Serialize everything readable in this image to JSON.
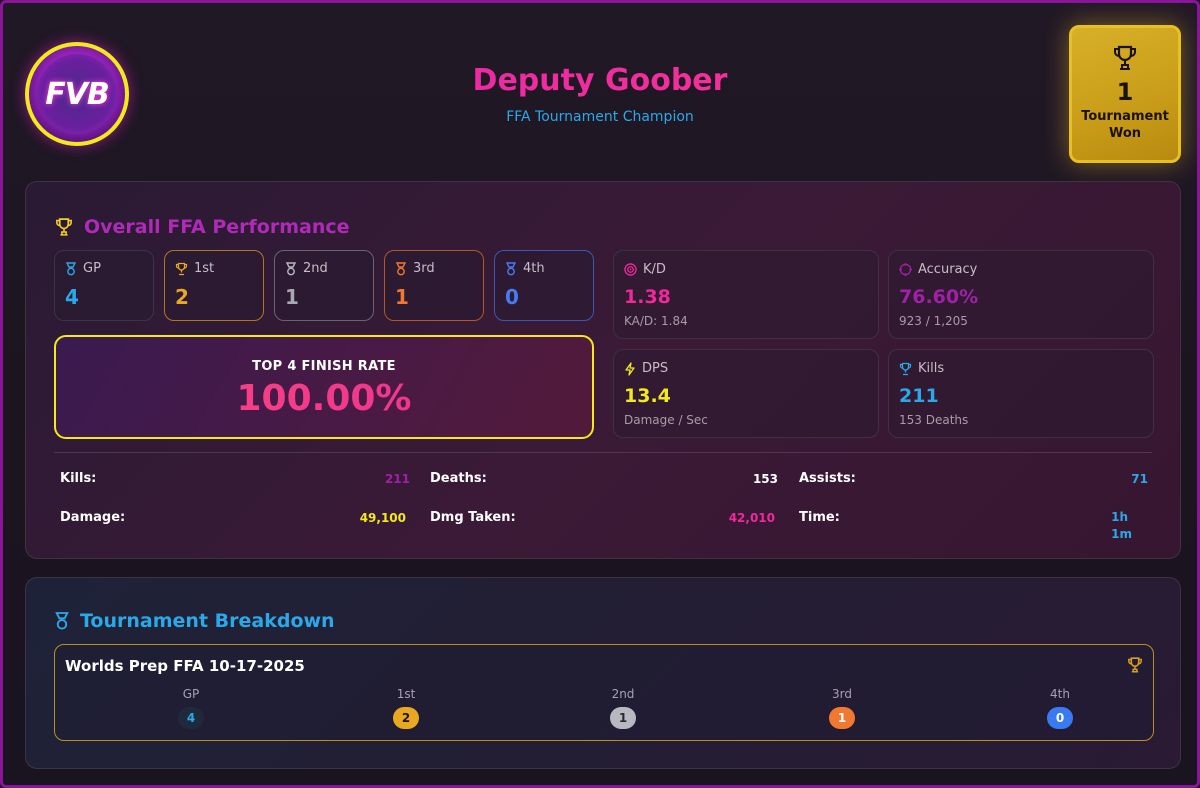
{
  "header": {
    "logo_text": "FVB",
    "player_name": "Deputy Goober",
    "subtitle": "FFA Tournament Champion",
    "trophy": {
      "count": "1",
      "label_line1": "Tournament",
      "label_line2": "Won",
      "icon": "trophy-icon"
    }
  },
  "performance": {
    "title": "Overall FFA Performance",
    "placements": [
      {
        "label": "GP",
        "value": "4",
        "icon": "medal-icon",
        "color": "#2aa8e8"
      },
      {
        "label": "1st",
        "value": "2",
        "icon": "trophy-icon",
        "color": "#e8a820"
      },
      {
        "label": "2nd",
        "value": "1",
        "icon": "medal-icon",
        "color": "#a8a8b0"
      },
      {
        "label": "3rd",
        "value": "1",
        "icon": "medal-icon",
        "color": "#f07830"
      },
      {
        "label": "4th",
        "value": "0",
        "icon": "medal-icon",
        "color": "#4a7af0"
      }
    ],
    "finish_rate": {
      "label": "TOP 4 FINISH RATE",
      "value": "100.00%"
    },
    "kpis": {
      "kd": {
        "label": "K/D",
        "value": "1.38",
        "sub": "KA/D: 1.84",
        "icon": "target-icon",
        "color": "#f0289a"
      },
      "accuracy": {
        "label": "Accuracy",
        "value": "76.60%",
        "sub": "923 / 1,205",
        "icon": "crosshair-icon",
        "color": "#a020a8"
      },
      "dps": {
        "label": "DPS",
        "value": "13.4",
        "sub": "Damage / Sec",
        "icon": "bolt-icon",
        "color": "#f2ea1a"
      },
      "kills": {
        "label": "Kills",
        "value": "211",
        "sub": "153 Deaths",
        "icon": "trophy-icon",
        "color": "#2aa8e8"
      }
    },
    "totals": {
      "kills": {
        "label": "Kills:",
        "value": "211",
        "color": "#a020a8"
      },
      "deaths": {
        "label": "Deaths:",
        "value": "153",
        "color": "#ffffff"
      },
      "assists": {
        "label": "Assists:",
        "value": "71",
        "color": "#2aa8e8"
      },
      "damage": {
        "label": "Damage:",
        "value": "49,100",
        "color": "#f2ea1a"
      },
      "dmg_taken": {
        "label": "Dmg Taken:",
        "value": "42,010",
        "color": "#f0289a"
      },
      "time": {
        "label": "Time:",
        "value_line1": "1h",
        "value_line2": "1m",
        "color": "#2aa8e8"
      }
    }
  },
  "breakdown": {
    "title": "Tournament Breakdown",
    "events": [
      {
        "name": "Worlds Prep FFA 10-17-2025",
        "columns": [
          {
            "label": "GP",
            "value": "4",
            "color": "#1e2a3c",
            "text_color": "#2aa8e8"
          },
          {
            "label": "1st",
            "value": "2",
            "color": "#e8a820",
            "text_color": "#1a1208"
          },
          {
            "label": "2nd",
            "value": "1",
            "color": "#b8b8c0",
            "text_color": "#2a2a30"
          },
          {
            "label": "3rd",
            "value": "1",
            "color": "#f07830",
            "text_color": "#ffffff"
          },
          {
            "label": "4th",
            "value": "0",
            "color": "#3a7af0",
            "text_color": "#ffffff"
          }
        ]
      }
    ]
  }
}
